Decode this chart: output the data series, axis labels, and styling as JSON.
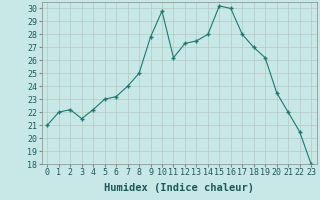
{
  "x": [
    0,
    1,
    2,
    3,
    4,
    5,
    6,
    7,
    8,
    9,
    10,
    11,
    12,
    13,
    14,
    15,
    16,
    17,
    18,
    19,
    20,
    21,
    22,
    23
  ],
  "y": [
    21.0,
    22.0,
    22.2,
    21.5,
    22.2,
    23.0,
    23.2,
    24.0,
    25.0,
    27.8,
    29.8,
    26.2,
    27.3,
    27.5,
    28.0,
    30.2,
    30.0,
    28.0,
    27.0,
    26.2,
    23.5,
    22.0,
    20.5,
    18.0
  ],
  "line_color": "#1a7a6e",
  "marker": "+",
  "bg_color": "#c8e8e8",
  "grid_color": "#b8c8c0",
  "ylim": [
    18,
    30.5
  ],
  "yticks": [
    18,
    19,
    20,
    21,
    22,
    23,
    24,
    25,
    26,
    27,
    28,
    29,
    30
  ],
  "xlabel": "Humidex (Indice chaleur)",
  "xlabel_fontsize": 7.5,
  "tick_fontsize": 6,
  "marker_size": 3.5
}
